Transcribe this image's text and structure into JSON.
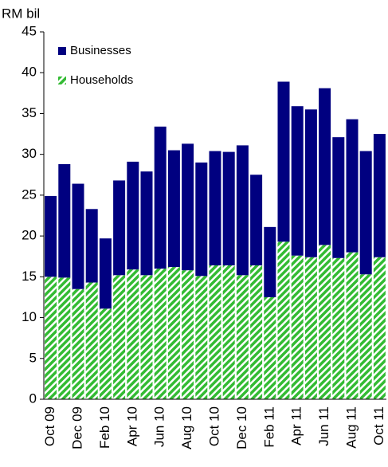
{
  "chart_data": {
    "type": "stacked_bar",
    "y_axis_label": "RM bil",
    "categories": [
      "Oct 09",
      null,
      "Dec 09",
      null,
      "Feb 10",
      null,
      "Apr 10",
      null,
      "Jun 10",
      null,
      "Aug 10",
      null,
      "Oct 10",
      null,
      "Dec 10",
      null,
      "Feb 11",
      null,
      "Apr 11",
      null,
      "Jun 11",
      null,
      "Aug 11",
      null,
      "Oct 11"
    ],
    "series": [
      {
        "name": "Businesses",
        "color": "#000080",
        "values": [
          9.9,
          13.9,
          12.9,
          9.0,
          8.6,
          11.6,
          13.2,
          12.7,
          17.4,
          14.3,
          15.5,
          13.9,
          14.0,
          13.9,
          15.9,
          11.1,
          8.6,
          19.6,
          18.3,
          18.1,
          19.2,
          14.8,
          16.3,
          15.1,
          15.1
        ]
      },
      {
        "name": "Households",
        "color": "#33bb33",
        "values": [
          15.0,
          14.9,
          13.5,
          14.3,
          11.1,
          15.2,
          15.9,
          15.2,
          16.0,
          16.2,
          15.8,
          15.1,
          16.4,
          16.4,
          15.2,
          16.4,
          12.5,
          19.3,
          17.6,
          17.4,
          18.9,
          17.3,
          18.0,
          15.3,
          17.4
        ]
      }
    ],
    "stack_order": [
      "Households",
      "Businesses"
    ],
    "ylim": [
      0,
      45
    ],
    "yticks": [
      0,
      5,
      10,
      15,
      20,
      25,
      30,
      35,
      40,
      45
    ]
  }
}
